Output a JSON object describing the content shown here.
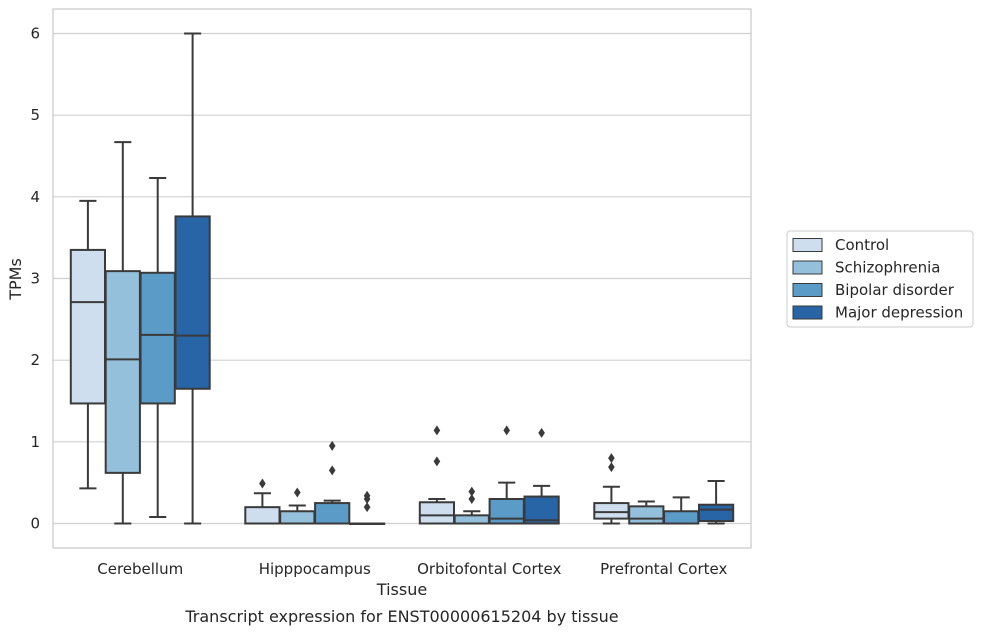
{
  "chart_data": {
    "type": "box",
    "caption": "Transcript expression for ENST00000615204 by tissue",
    "xlabel": "Tissue",
    "ylabel": "TPMs",
    "ylim": [
      -0.3,
      6.3
    ],
    "yticks": [
      0,
      1,
      2,
      3,
      4,
      5,
      6
    ],
    "grid": "horizontal",
    "legend_position": "right",
    "categories": [
      "Cerebellum",
      "Hipppocampus",
      "Orbitofontal Cortex",
      "Prefrontal Cortex"
    ],
    "series": [
      {
        "name": "Control",
        "color": "#cfdeef",
        "boxes": [
          {
            "min": 0.43,
            "q1": 1.47,
            "median": 2.71,
            "q3": 3.35,
            "max": 3.95,
            "outliers": []
          },
          {
            "min": 0.0,
            "q1": 0.0,
            "median": 0.0,
            "q3": 0.2,
            "max": 0.37,
            "outliers": [
              0.49
            ]
          },
          {
            "min": 0.0,
            "q1": 0.0,
            "median": 0.1,
            "q3": 0.26,
            "max": 0.3,
            "outliers": [
              0.76,
              1.14
            ]
          },
          {
            "min": 0.0,
            "q1": 0.06,
            "median": 0.14,
            "q3": 0.25,
            "max": 0.45,
            "outliers": [
              0.69,
              0.8
            ]
          }
        ]
      },
      {
        "name": "Schizophrenia",
        "color": "#94c0dc",
        "boxes": [
          {
            "min": 0.0,
            "q1": 0.62,
            "median": 2.01,
            "q3": 3.09,
            "max": 4.67,
            "outliers": []
          },
          {
            "min": 0.0,
            "q1": 0.0,
            "median": 0.0,
            "q3": 0.15,
            "max": 0.22,
            "outliers": [
              0.38
            ]
          },
          {
            "min": 0.0,
            "q1": 0.0,
            "median": 0.0,
            "q3": 0.1,
            "max": 0.15,
            "outliers": [
              0.3,
              0.39
            ]
          },
          {
            "min": 0.0,
            "q1": 0.0,
            "median": 0.06,
            "q3": 0.21,
            "max": 0.27,
            "outliers": []
          }
        ]
      },
      {
        "name": "Bipolar disorder",
        "color": "#5b9bc8",
        "boxes": [
          {
            "min": 0.08,
            "q1": 1.47,
            "median": 2.31,
            "q3": 3.07,
            "max": 4.23,
            "outliers": []
          },
          {
            "min": 0.0,
            "q1": 0.0,
            "median": 0.0,
            "q3": 0.25,
            "max": 0.28,
            "outliers": [
              0.65,
              0.95
            ]
          },
          {
            "min": 0.0,
            "q1": 0.0,
            "median": 0.06,
            "q3": 0.3,
            "max": 0.5,
            "outliers": [
              1.14
            ]
          },
          {
            "min": 0.0,
            "q1": 0.0,
            "median": 0.0,
            "q3": 0.15,
            "max": 0.32,
            "outliers": []
          }
        ]
      },
      {
        "name": "Major depression",
        "color": "#2865a6",
        "boxes": [
          {
            "min": 0.0,
            "q1": 1.65,
            "median": 2.3,
            "q3": 3.76,
            "max": 6.0,
            "outliers": []
          },
          {
            "min": 0.0,
            "q1": 0.0,
            "median": 0.0,
            "q3": 0.0,
            "max": 0.0,
            "outliers": [
              0.2,
              0.3,
              0.34
            ]
          },
          {
            "min": 0.0,
            "q1": 0.0,
            "median": 0.04,
            "q3": 0.33,
            "max": 0.46,
            "outliers": [
              1.11
            ]
          },
          {
            "min": 0.0,
            "q1": 0.03,
            "median": 0.17,
            "q3": 0.23,
            "max": 0.52,
            "outliers": []
          }
        ]
      }
    ]
  }
}
